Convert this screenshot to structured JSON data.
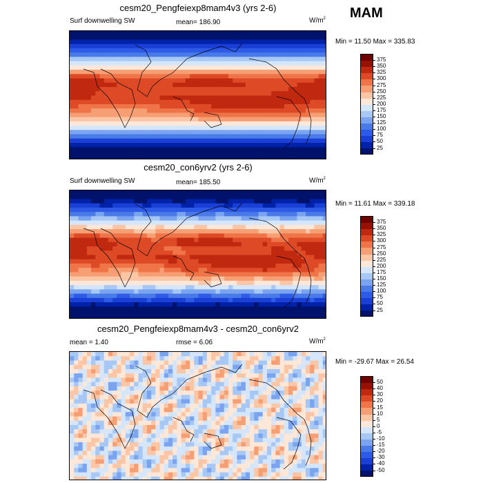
{
  "season": "MAM",
  "panels": [
    {
      "title": "cesm20_Pengfeiexp8mam4v3 (yrs 2-6)",
      "left_label": "Surf downwelling SW",
      "center_label": "mean= 186.90",
      "units": "W/m",
      "units_sup": "2",
      "minmax": "Min = 11.50 Max = 335.83"
    },
    {
      "title": "cesm20_con6yrv2 (yrs 2-6)",
      "left_label": "Surf downwelling SW",
      "center_label": "mean= 185.50",
      "units": "W/m",
      "units_sup": "2",
      "minmax": "Min = 11.61 Max = 339.18"
    },
    {
      "title": "cesm20_Pengfeiexp8mam4v3 - cesm20_con6yrv2",
      "left_label": "mean = 1.40",
      "center_label": "rmse = 6.06",
      "units": "W/m",
      "units_sup": "2",
      "minmax": "Min = -29.67 Max = 26.54"
    }
  ],
  "chart_data": [
    {
      "type": "heatmap",
      "title": "cesm20_Pengfeiexp8mam4v3 (yrs 2-6)",
      "variable": "Surf downwelling SW",
      "units": "W/m2",
      "mean": 186.9,
      "min": 11.5,
      "max": 335.83,
      "colorbar_levels": [
        25,
        50,
        75,
        100,
        125,
        150,
        175,
        200,
        225,
        250,
        275,
        300,
        325,
        350,
        375
      ],
      "colorbar_colors": [
        "#00126b",
        "#0022a8",
        "#1a3fd6",
        "#2e5ae8",
        "#4a7ae8",
        "#7aa3f0",
        "#a7c7f5",
        "#d6e6fa",
        "#fde7d8",
        "#fbc6a6",
        "#f79f74",
        "#ef7448",
        "#de4a26",
        "#c0290f",
        "#961004",
        "#6e0000"
      ]
    },
    {
      "type": "heatmap",
      "title": "cesm20_con6yrv2 (yrs 2-6)",
      "variable": "Surf downwelling SW",
      "units": "W/m2",
      "mean": 185.5,
      "min": 11.61,
      "max": 339.18,
      "colorbar_levels": [
        25,
        50,
        75,
        100,
        125,
        150,
        175,
        200,
        225,
        250,
        275,
        300,
        325,
        350,
        375
      ],
      "colorbar_colors": [
        "#00126b",
        "#0022a8",
        "#1a3fd6",
        "#2e5ae8",
        "#4a7ae8",
        "#7aa3f0",
        "#a7c7f5",
        "#d6e6fa",
        "#fde7d8",
        "#fbc6a6",
        "#f79f74",
        "#ef7448",
        "#de4a26",
        "#c0290f",
        "#961004",
        "#6e0000"
      ]
    },
    {
      "type": "heatmap",
      "title": "cesm20_Pengfeiexp8mam4v3 - cesm20_con6yrv2",
      "mean": 1.4,
      "rmse": 6.06,
      "units": "W/m2",
      "min": -29.67,
      "max": 26.54,
      "colorbar_levels": [
        -50,
        -40,
        -30,
        -20,
        -15,
        -10,
        -5,
        0,
        5,
        10,
        15,
        20,
        30,
        40,
        50
      ],
      "colorbar_colors": [
        "#00126b",
        "#0022a8",
        "#1a3fd6",
        "#2e5ae8",
        "#4a7ae8",
        "#7aa3f0",
        "#a7c7f5",
        "#d6e6fa",
        "#fde7d8",
        "#fbc6a6",
        "#f79f74",
        "#ef7448",
        "#de4a26",
        "#c0290f",
        "#961004",
        "#6e0000"
      ]
    }
  ]
}
